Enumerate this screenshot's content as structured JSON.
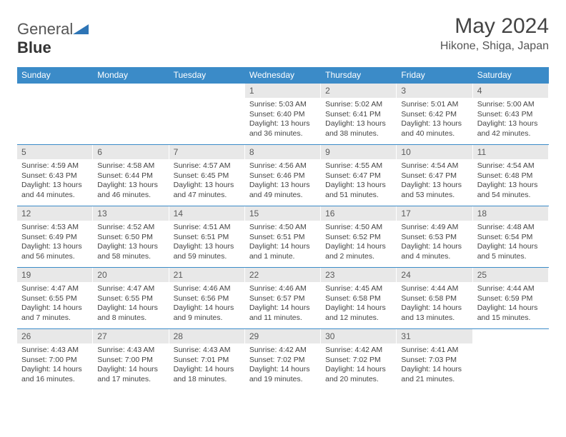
{
  "logo": {
    "word1": "General",
    "word2": "Blue",
    "icon_color": "#2e75b6"
  },
  "title": "May 2024",
  "location": "Hikone, Shiga, Japan",
  "header_bg": "#3b8bc8",
  "daynum_bg": "#e8e8e8",
  "border_color": "#3b8bc8",
  "text_color": "#444444",
  "day_headers": [
    "Sunday",
    "Monday",
    "Tuesday",
    "Wednesday",
    "Thursday",
    "Friday",
    "Saturday"
  ],
  "weeks": [
    [
      null,
      null,
      null,
      {
        "n": "1",
        "sr": "5:03 AM",
        "ss": "6:40 PM",
        "dl": "13 hours and 36 minutes."
      },
      {
        "n": "2",
        "sr": "5:02 AM",
        "ss": "6:41 PM",
        "dl": "13 hours and 38 minutes."
      },
      {
        "n": "3",
        "sr": "5:01 AM",
        "ss": "6:42 PM",
        "dl": "13 hours and 40 minutes."
      },
      {
        "n": "4",
        "sr": "5:00 AM",
        "ss": "6:43 PM",
        "dl": "13 hours and 42 minutes."
      }
    ],
    [
      {
        "n": "5",
        "sr": "4:59 AM",
        "ss": "6:43 PM",
        "dl": "13 hours and 44 minutes."
      },
      {
        "n": "6",
        "sr": "4:58 AM",
        "ss": "6:44 PM",
        "dl": "13 hours and 46 minutes."
      },
      {
        "n": "7",
        "sr": "4:57 AM",
        "ss": "6:45 PM",
        "dl": "13 hours and 47 minutes."
      },
      {
        "n": "8",
        "sr": "4:56 AM",
        "ss": "6:46 PM",
        "dl": "13 hours and 49 minutes."
      },
      {
        "n": "9",
        "sr": "4:55 AM",
        "ss": "6:47 PM",
        "dl": "13 hours and 51 minutes."
      },
      {
        "n": "10",
        "sr": "4:54 AM",
        "ss": "6:47 PM",
        "dl": "13 hours and 53 minutes."
      },
      {
        "n": "11",
        "sr": "4:54 AM",
        "ss": "6:48 PM",
        "dl": "13 hours and 54 minutes."
      }
    ],
    [
      {
        "n": "12",
        "sr": "4:53 AM",
        "ss": "6:49 PM",
        "dl": "13 hours and 56 minutes."
      },
      {
        "n": "13",
        "sr": "4:52 AM",
        "ss": "6:50 PM",
        "dl": "13 hours and 58 minutes."
      },
      {
        "n": "14",
        "sr": "4:51 AM",
        "ss": "6:51 PM",
        "dl": "13 hours and 59 minutes."
      },
      {
        "n": "15",
        "sr": "4:50 AM",
        "ss": "6:51 PM",
        "dl": "14 hours and 1 minute."
      },
      {
        "n": "16",
        "sr": "4:50 AM",
        "ss": "6:52 PM",
        "dl": "14 hours and 2 minutes."
      },
      {
        "n": "17",
        "sr": "4:49 AM",
        "ss": "6:53 PM",
        "dl": "14 hours and 4 minutes."
      },
      {
        "n": "18",
        "sr": "4:48 AM",
        "ss": "6:54 PM",
        "dl": "14 hours and 5 minutes."
      }
    ],
    [
      {
        "n": "19",
        "sr": "4:47 AM",
        "ss": "6:55 PM",
        "dl": "14 hours and 7 minutes."
      },
      {
        "n": "20",
        "sr": "4:47 AM",
        "ss": "6:55 PM",
        "dl": "14 hours and 8 minutes."
      },
      {
        "n": "21",
        "sr": "4:46 AM",
        "ss": "6:56 PM",
        "dl": "14 hours and 9 minutes."
      },
      {
        "n": "22",
        "sr": "4:46 AM",
        "ss": "6:57 PM",
        "dl": "14 hours and 11 minutes."
      },
      {
        "n": "23",
        "sr": "4:45 AM",
        "ss": "6:58 PM",
        "dl": "14 hours and 12 minutes."
      },
      {
        "n": "24",
        "sr": "4:44 AM",
        "ss": "6:58 PM",
        "dl": "14 hours and 13 minutes."
      },
      {
        "n": "25",
        "sr": "4:44 AM",
        "ss": "6:59 PM",
        "dl": "14 hours and 15 minutes."
      }
    ],
    [
      {
        "n": "26",
        "sr": "4:43 AM",
        "ss": "7:00 PM",
        "dl": "14 hours and 16 minutes."
      },
      {
        "n": "27",
        "sr": "4:43 AM",
        "ss": "7:00 PM",
        "dl": "14 hours and 17 minutes."
      },
      {
        "n": "28",
        "sr": "4:43 AM",
        "ss": "7:01 PM",
        "dl": "14 hours and 18 minutes."
      },
      {
        "n": "29",
        "sr": "4:42 AM",
        "ss": "7:02 PM",
        "dl": "14 hours and 19 minutes."
      },
      {
        "n": "30",
        "sr": "4:42 AM",
        "ss": "7:02 PM",
        "dl": "14 hours and 20 minutes."
      },
      {
        "n": "31",
        "sr": "4:41 AM",
        "ss": "7:03 PM",
        "dl": "14 hours and 21 minutes."
      },
      null
    ]
  ],
  "labels": {
    "sunrise": "Sunrise:",
    "sunset": "Sunset:",
    "daylight": "Daylight:"
  }
}
